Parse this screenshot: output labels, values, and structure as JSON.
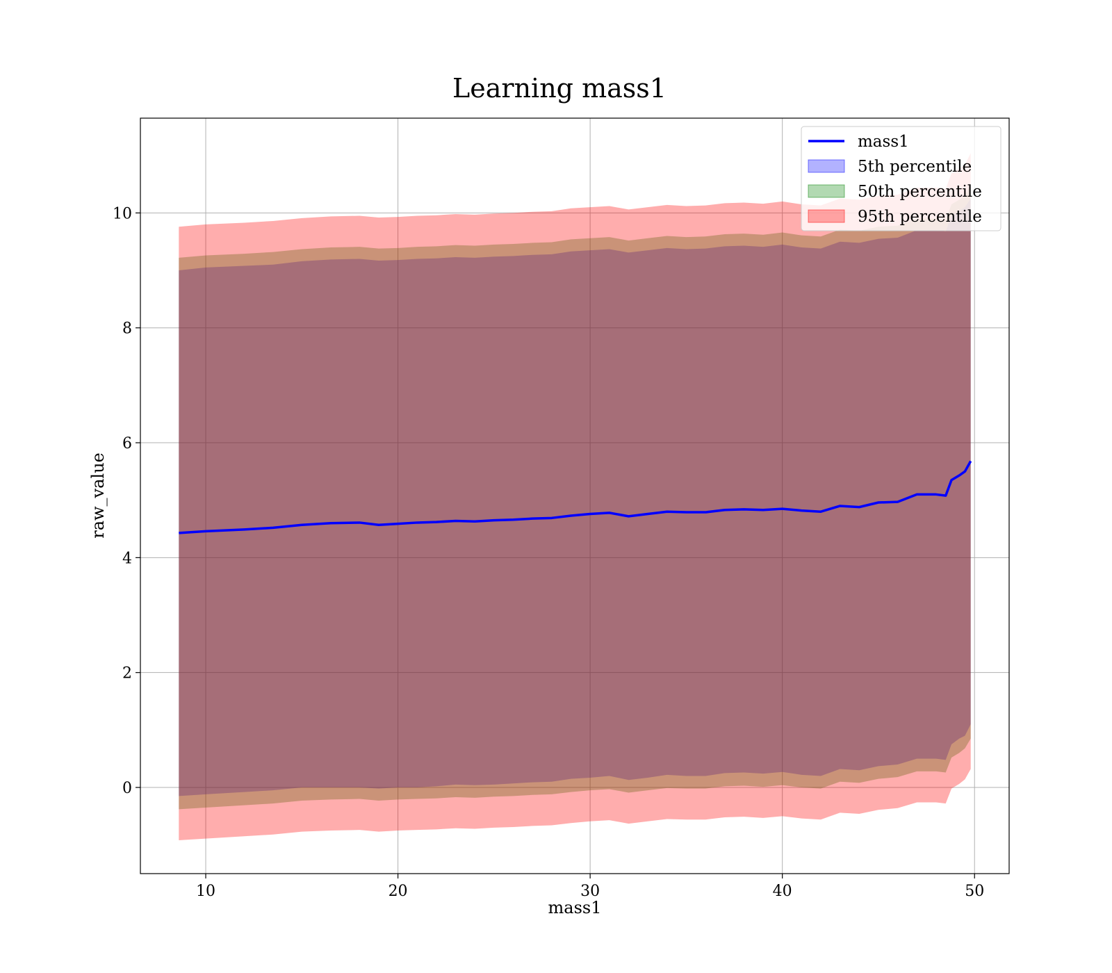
{
  "chart_data": {
    "type": "area",
    "title": "Learning mass1",
    "xlabel": "mass1",
    "ylabel": "raw_value",
    "xlim": [
      6.6,
      51.8
    ],
    "ylim": [
      -1.5,
      11.65
    ],
    "grid": true,
    "legend_position": "top-right",
    "x_ticks": [
      {
        "value": 10,
        "label": "10"
      },
      {
        "value": 20,
        "label": "20"
      },
      {
        "value": 30,
        "label": "30"
      },
      {
        "value": 40,
        "label": "40"
      },
      {
        "value": 50,
        "label": "50"
      }
    ],
    "y_ticks": [
      {
        "value": 0,
        "label": "0"
      },
      {
        "value": 2,
        "label": "2"
      },
      {
        "value": 4,
        "label": "4"
      },
      {
        "value": 6,
        "label": "6"
      },
      {
        "value": 8,
        "label": "8"
      },
      {
        "value": 10,
        "label": "10"
      }
    ],
    "x": [
      8.6,
      10,
      12,
      13.5,
      15,
      16.5,
      18,
      19,
      20,
      21,
      22,
      23,
      24,
      25,
      26,
      27,
      28,
      29,
      30,
      31,
      32,
      33,
      34,
      35,
      36,
      37,
      38,
      39,
      40,
      41,
      42,
      43,
      44,
      45,
      46,
      47,
      48,
      48.5,
      48.8,
      49.2,
      49.5,
      49.8
    ],
    "series": [
      {
        "name": "mass1",
        "kind": "line",
        "color": "#0000ff",
        "values": [
          4.43,
          4.46,
          4.49,
          4.52,
          4.57,
          4.6,
          4.61,
          4.57,
          4.59,
          4.61,
          4.62,
          4.64,
          4.63,
          4.65,
          4.66,
          4.68,
          4.69,
          4.73,
          4.76,
          4.78,
          4.72,
          4.76,
          4.8,
          4.79,
          4.79,
          4.83,
          4.84,
          4.83,
          4.85,
          4.82,
          4.8,
          4.9,
          4.88,
          4.96,
          4.97,
          5.1,
          5.1,
          5.08,
          5.35,
          5.43,
          5.5,
          5.68
        ]
      },
      {
        "name": "5th percentile",
        "kind": "band",
        "color": "#0000ff",
        "opacity": 0.3,
        "lower": [
          -0.15,
          -0.12,
          -0.08,
          -0.05,
          0.0,
          0.0,
          0.0,
          -0.02,
          0.0,
          0.0,
          0.02,
          0.05,
          0.04,
          0.05,
          0.07,
          0.09,
          0.1,
          0.15,
          0.17,
          0.2,
          0.13,
          0.17,
          0.22,
          0.2,
          0.2,
          0.25,
          0.26,
          0.24,
          0.27,
          0.22,
          0.2,
          0.32,
          0.3,
          0.37,
          0.4,
          0.5,
          0.5,
          0.48,
          0.75,
          0.85,
          0.9,
          1.1
        ],
        "upper": [
          9.0,
          9.05,
          9.08,
          9.1,
          9.16,
          9.19,
          9.2,
          9.17,
          9.18,
          9.2,
          9.21,
          9.23,
          9.22,
          9.24,
          9.25,
          9.27,
          9.28,
          9.33,
          9.35,
          9.37,
          9.31,
          9.35,
          9.39,
          9.37,
          9.38,
          9.42,
          9.43,
          9.41,
          9.45,
          9.4,
          9.38,
          9.5,
          9.48,
          9.55,
          9.57,
          9.7,
          9.7,
          9.68,
          9.95,
          10.03,
          10.1,
          10.25
        ]
      },
      {
        "name": "50th percentile",
        "kind": "band",
        "color": "#008000",
        "opacity": 0.3,
        "lower": [
          -0.38,
          -0.35,
          -0.31,
          -0.28,
          -0.23,
          -0.21,
          -0.2,
          -0.23,
          -0.21,
          -0.2,
          -0.19,
          -0.17,
          -0.18,
          -0.16,
          -0.15,
          -0.13,
          -0.12,
          -0.08,
          -0.05,
          -0.03,
          -0.09,
          -0.05,
          -0.01,
          -0.02,
          -0.02,
          0.02,
          0.03,
          0.01,
          0.04,
          0.0,
          -0.02,
          0.1,
          0.08,
          0.15,
          0.18,
          0.28,
          0.28,
          0.26,
          0.52,
          0.6,
          0.68,
          0.85
        ],
        "upper": [
          9.22,
          9.26,
          9.29,
          9.32,
          9.37,
          9.4,
          9.41,
          9.38,
          9.39,
          9.41,
          9.42,
          9.44,
          9.43,
          9.45,
          9.46,
          9.48,
          9.49,
          9.54,
          9.56,
          9.58,
          9.52,
          9.56,
          9.6,
          9.58,
          9.59,
          9.63,
          9.64,
          9.62,
          9.66,
          9.61,
          9.59,
          9.71,
          9.69,
          9.76,
          9.78,
          9.9,
          9.9,
          9.88,
          10.15,
          10.23,
          10.3,
          10.5
        ]
      },
      {
        "name": "95th percentile",
        "kind": "band",
        "color": "#ff0000",
        "opacity": 0.32,
        "lower": [
          -0.92,
          -0.89,
          -0.85,
          -0.82,
          -0.77,
          -0.75,
          -0.74,
          -0.77,
          -0.75,
          -0.74,
          -0.73,
          -0.71,
          -0.72,
          -0.7,
          -0.69,
          -0.67,
          -0.66,
          -0.62,
          -0.59,
          -0.57,
          -0.63,
          -0.59,
          -0.55,
          -0.56,
          -0.56,
          -0.52,
          -0.51,
          -0.53,
          -0.5,
          -0.54,
          -0.56,
          -0.44,
          -0.46,
          -0.39,
          -0.36,
          -0.26,
          -0.26,
          -0.28,
          -0.02,
          0.06,
          0.14,
          0.32
        ],
        "upper": [
          9.76,
          9.8,
          9.83,
          9.86,
          9.91,
          9.94,
          9.95,
          9.92,
          9.93,
          9.95,
          9.96,
          9.98,
          9.97,
          9.99,
          10.0,
          10.02,
          10.03,
          10.08,
          10.1,
          10.12,
          10.06,
          10.1,
          10.14,
          10.12,
          10.13,
          10.17,
          10.18,
          10.16,
          10.2,
          10.15,
          10.13,
          10.25,
          10.23,
          10.3,
          10.32,
          10.44,
          10.44,
          10.42,
          10.69,
          10.77,
          10.84,
          11.04
        ]
      }
    ],
    "legend": [
      {
        "label": "mass1",
        "type": "line",
        "color": "#0000ff"
      },
      {
        "label": "5th percentile",
        "type": "patch",
        "color": "#0000ff",
        "opacity": 0.3
      },
      {
        "label": "50th percentile",
        "type": "patch",
        "color": "#008000",
        "opacity": 0.3
      },
      {
        "label": "95th percentile",
        "type": "patch",
        "color": "#ff0000",
        "opacity": 0.32
      }
    ]
  }
}
